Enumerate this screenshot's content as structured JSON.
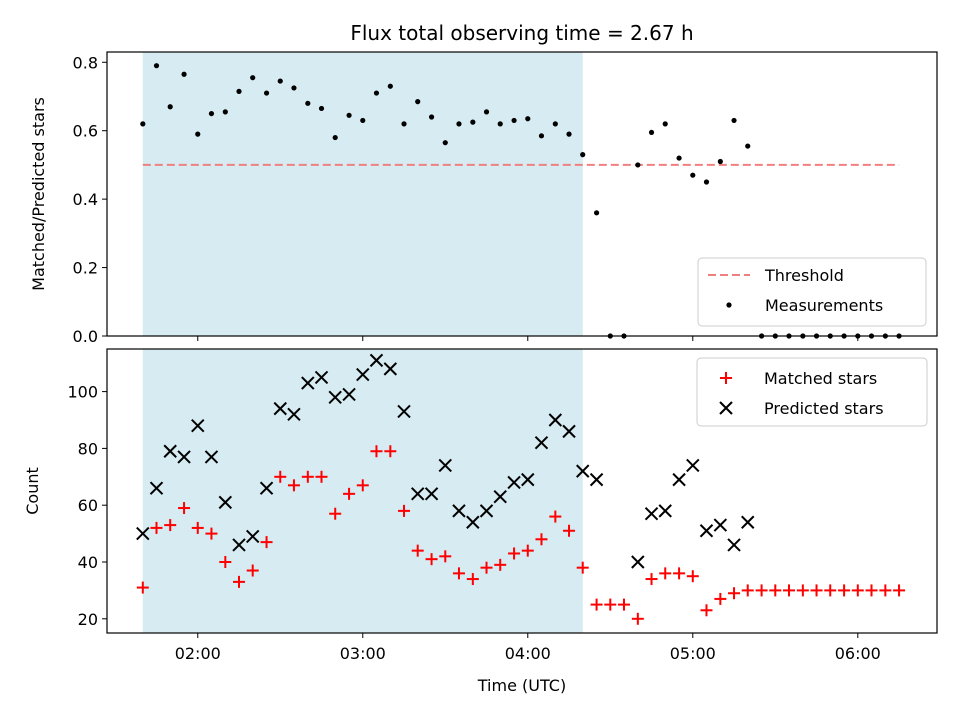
{
  "chart_data": {
    "type": "scatter",
    "title": "Flux total observing time = 2.67 h",
    "xlabel": "Time (UTC)",
    "xlim_hours": [
      1.45,
      6.48
    ],
    "x_ticks": [
      {
        "value": 2.0,
        "label": "02:00"
      },
      {
        "value": 3.0,
        "label": "03:00"
      },
      {
        "value": 4.0,
        "label": "04:00"
      },
      {
        "value": 5.0,
        "label": "05:00"
      },
      {
        "value": 6.0,
        "label": "06:00"
      }
    ],
    "shaded_span_hours": [
      1.667,
      4.333
    ],
    "colors": {
      "shade": "#add8e6",
      "threshold": "#f08080",
      "matched": "#ff0000",
      "predicted": "#000000",
      "measurement": "#000000"
    },
    "top_panel": {
      "ylabel": "Matched/Predicted stars",
      "ylim": [
        0,
        0.83
      ],
      "y_ticks": [
        "0.0",
        "0.2",
        "0.4",
        "0.6",
        "0.8"
      ],
      "threshold": {
        "label": "Threshold",
        "y": 0.5,
        "x_range": [
          1.667,
          6.25
        ]
      },
      "legend": [
        "Threshold",
        "Measurements"
      ],
      "legend_position": "lower-right",
      "measurements_label": "Measurements",
      "measurements_x": [
        1.667,
        1.75,
        1.833,
        1.917,
        2.0,
        2.083,
        2.167,
        2.25,
        2.333,
        2.417,
        2.5,
        2.583,
        2.667,
        2.75,
        2.833,
        2.917,
        3.0,
        3.083,
        3.167,
        3.25,
        3.333,
        3.417,
        3.5,
        3.583,
        3.667,
        3.75,
        3.833,
        3.917,
        4.0,
        4.083,
        4.167,
        4.25,
        4.333,
        4.417,
        4.5,
        4.583,
        4.667,
        4.75,
        4.833,
        4.917,
        5.0,
        5.083,
        5.167,
        5.25,
        5.333,
        5.417,
        5.5,
        5.583,
        5.667,
        5.75,
        5.833,
        5.917,
        6.0,
        6.083,
        6.167,
        6.25
      ],
      "measurements_y": [
        0.62,
        0.79,
        0.67,
        0.765,
        0.59,
        0.65,
        0.655,
        0.715,
        0.755,
        0.71,
        0.745,
        0.725,
        0.68,
        0.665,
        0.58,
        0.645,
        0.63,
        0.71,
        0.73,
        0.62,
        0.685,
        0.64,
        0.565,
        0.62,
        0.625,
        0.655,
        0.62,
        0.63,
        0.635,
        0.585,
        0.62,
        0.59,
        0.53,
        0.36,
        0.0,
        0.0,
        0.5,
        0.595,
        0.62,
        0.52,
        0.47,
        0.45,
        0.51,
        0.63,
        0.555,
        0.0,
        0.0,
        0.0,
        0.0,
        0.0,
        0.0,
        0.0,
        0.0,
        0.0,
        0.0,
        0.0
      ]
    },
    "bottom_panel": {
      "ylabel": "Count",
      "ylim": [
        15,
        115
      ],
      "y_ticks": [
        "20",
        "40",
        "60",
        "80",
        "100"
      ],
      "legend_position": "upper-right",
      "series": [
        {
          "name": "Matched stars",
          "marker": "+",
          "x": [
            1.667,
            1.75,
            1.833,
            1.917,
            2.0,
            2.083,
            2.167,
            2.25,
            2.333,
            2.417,
            2.5,
            2.583,
            2.667,
            2.75,
            2.833,
            2.917,
            3.0,
            3.083,
            3.167,
            3.25,
            3.333,
            3.417,
            3.5,
            3.583,
            3.667,
            3.75,
            3.833,
            3.917,
            4.0,
            4.083,
            4.167,
            4.25,
            4.333,
            4.417,
            4.5,
            4.583,
            4.667,
            4.75,
            4.833,
            4.917,
            5.0,
            5.083,
            5.167,
            5.25,
            5.333,
            5.417,
            5.5,
            5.583,
            5.667,
            5.75,
            5.833,
            5.917,
            6.0,
            6.083,
            6.167,
            6.25
          ],
          "y": [
            31,
            52,
            53,
            59,
            52,
            50,
            40,
            33,
            37,
            47,
            70,
            67,
            70,
            70,
            57,
            64,
            67,
            79,
            79,
            58,
            44,
            41,
            42,
            36,
            34,
            38,
            39,
            43,
            44,
            48,
            56,
            51,
            38,
            25,
            25,
            25,
            20,
            34,
            36,
            36,
            35,
            23,
            27,
            29,
            30,
            30,
            30,
            30,
            30,
            30,
            30,
            30,
            30,
            30,
            30,
            30
          ]
        },
        {
          "name": "Predicted stars",
          "marker": "x",
          "x": [
            1.667,
            1.75,
            1.833,
            1.917,
            2.0,
            2.083,
            2.167,
            2.25,
            2.333,
            2.417,
            2.5,
            2.583,
            2.667,
            2.75,
            2.833,
            2.917,
            3.0,
            3.083,
            3.167,
            3.25,
            3.333,
            3.417,
            3.5,
            3.583,
            3.667,
            3.75,
            3.833,
            3.917,
            4.0,
            4.083,
            4.167,
            4.25,
            4.333,
            4.417,
            4.667,
            4.75,
            4.833,
            4.917,
            5.0,
            5.083,
            5.167,
            5.25,
            5.333
          ],
          "y": [
            50,
            66,
            79,
            77,
            88,
            77,
            61,
            46,
            49,
            66,
            94,
            92,
            103,
            105,
            98,
            99,
            106,
            111,
            108,
            93,
            64,
            64,
            74,
            58,
            54,
            58,
            63,
            68,
            69,
            82,
            90,
            86,
            72,
            69,
            40,
            57,
            58,
            69,
            74,
            51,
            53,
            46,
            54
          ]
        }
      ]
    }
  }
}
